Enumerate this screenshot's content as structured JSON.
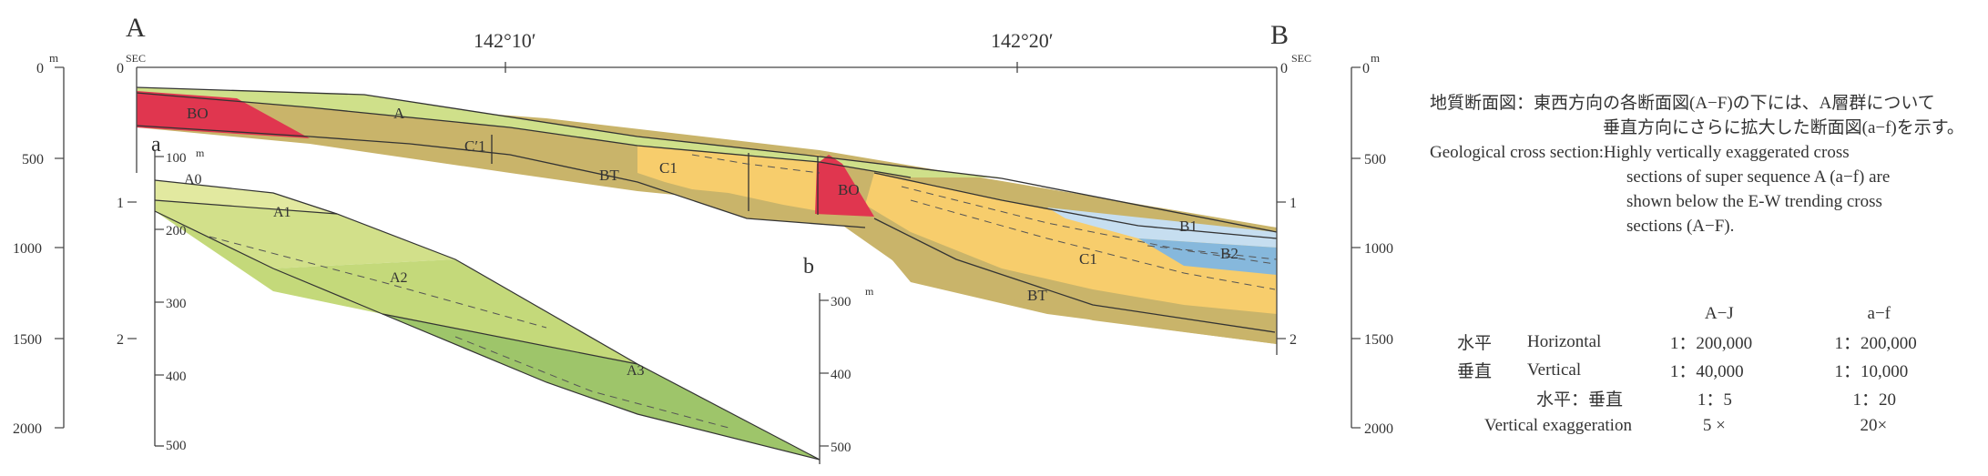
{
  "section_labels": {
    "start_letter": "A",
    "end_letter": "B",
    "longitude_1": "142°10′",
    "longitude_2": "142°20′"
  },
  "axes": {
    "depth_unit": "m",
    "depth_ticks": [
      "0",
      "500",
      "1000",
      "1500",
      "2000"
    ],
    "sec_unit": "SEC",
    "sec_ticks": [
      "0",
      "1",
      "2"
    ]
  },
  "units": {
    "bo_west": "BO",
    "a_main": "A",
    "c1_prime": "C′1",
    "bt_main": "BT",
    "c1_center": "C1",
    "bo_center": "BO",
    "b1": "B1",
    "b2": "B2",
    "c1_east": "C1",
    "bt_east": "BT"
  },
  "inset": {
    "label_a": "a",
    "label_b": "b",
    "unit": "m",
    "left_ticks": [
      "100",
      "200",
      "300",
      "400",
      "500"
    ],
    "right_ticks": [
      "300",
      "400",
      "500"
    ],
    "layers": [
      "A0",
      "A1",
      "A2",
      "A3"
    ]
  },
  "caption": {
    "jp_head": "地質断面図：東西方向の各断面図(A−F)の下には、A層群について",
    "jp_cont": "垂直方向にさらに拡大した断面図(a−f)を示す。",
    "en_head": "Geological cross section:",
    "en_l1": "Highly vertically exaggerated cross",
    "en_l2": "sections of super sequence A (a−f) are",
    "en_l3": "shown below the E-W trending cross",
    "en_l4": "sections (A−F)."
  },
  "scale": {
    "col1": "A−J",
    "col2": "a−f",
    "rows": [
      {
        "jp": "水平",
        "en": "Horizontal",
        "v1": "1：200,000",
        "v2": "1：200,000"
      },
      {
        "jp": "垂直",
        "en": "Vertical",
        "v1": "1：40,000",
        "v2": "1：10,000"
      }
    ],
    "ratio_label": "水平：垂直",
    "ratio_v1": "1：5",
    "ratio_v2": "1：20",
    "exag_label": "Vertical exaggeration",
    "exag_v1": "5 ×",
    "exag_v2": "20×"
  },
  "colors": {
    "green_a": "#cfe08a",
    "olive_bt": "#c9b46a",
    "red_bo": "#e0364f",
    "yellow_c": "#f7cd6c",
    "blue_b1": "#c6def0",
    "blue_b2": "#86b8dc",
    "inset_light": "#e2e9a0",
    "inset_mid": "#c4d97a",
    "inset_dark": "#9ec56a"
  }
}
